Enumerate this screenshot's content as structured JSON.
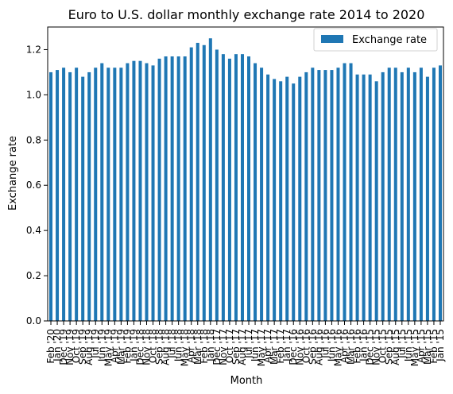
{
  "chart_data": {
    "type": "bar",
    "title": "Euro to U.S. dollar monthly exchange rate 2014 to 2020",
    "xlabel": "Month",
    "ylabel": "Exchange rate",
    "legend": {
      "placement": "top-right",
      "entries": [
        "Exchange rate"
      ]
    },
    "ylim": [
      0,
      1.3
    ],
    "yticks": [
      0.0,
      0.2,
      0.4,
      0.6,
      0.8,
      1.0,
      1.2
    ],
    "ytick_labels": [
      "0.0",
      "0.2",
      "0.4",
      "0.6",
      "0.8",
      "1.0",
      "1.2"
    ],
    "grid": false,
    "series": [
      {
        "name": "Exchange rate",
        "color": "#1f77b4",
        "values": [
          1.1,
          1.11,
          1.12,
          1.1,
          1.12,
          1.08,
          1.1,
          1.12,
          1.14,
          1.12,
          1.12,
          1.12,
          1.14,
          1.15,
          1.15,
          1.14,
          1.13,
          1.16,
          1.17,
          1.17,
          1.17,
          1.17,
          1.21,
          1.23,
          1.22,
          1.25,
          1.2,
          1.18,
          1.16,
          1.18,
          1.18,
          1.17,
          1.14,
          1.12,
          1.09,
          1.07,
          1.06,
          1.08,
          1.05,
          1.08,
          1.1,
          1.12,
          1.11,
          1.11,
          1.11,
          1.12,
          1.14,
          1.14,
          1.09,
          1.09,
          1.09,
          1.06,
          1.1,
          1.12,
          1.12,
          1.1,
          1.12,
          1.1,
          1.12,
          1.08,
          1.12,
          1.13
        ]
      }
    ],
    "categories": [
      "Feb '20",
      "Jan '20",
      "Dec '19",
      "Nov '19",
      "Oct '19",
      "Sep '19",
      "Aug '19",
      "Jul '19",
      "Jun '19",
      "May '19",
      "Apr '19",
      "Mar '19",
      "Feb '19",
      "Jan '19",
      "Dec '18",
      "Nov '18",
      "Oct '18",
      "Sep '18",
      "Aug '18",
      "Jul '18",
      "Jun '18",
      "May '18",
      "Apr '18",
      "Mar '18",
      "Feb '18",
      "Jan '18",
      "Dec '17",
      "Nov '17",
      "Oct '17",
      "Sep '17",
      "Aug '17",
      "Jul '17",
      "Jun '17",
      "May '17",
      "Apr '17",
      "Mar '17",
      "Feb '17",
      "Jan '17",
      "Dec '16",
      "Nov '16",
      "Oct '16",
      "Sep '16",
      "Aug '16",
      "Jul '16",
      "Jun '16",
      "May '16",
      "Apr '16",
      "Mar '16",
      "Feb '16",
      "Jan '16",
      "Dec '15",
      "Nov '15",
      "Oct '15",
      "Sep '15",
      "Aug '15",
      "Jul '15",
      "Jun '15",
      "May '15",
      "Apr '15",
      "Mar '15",
      "Feb '15",
      "Jan '15"
    ]
  }
}
